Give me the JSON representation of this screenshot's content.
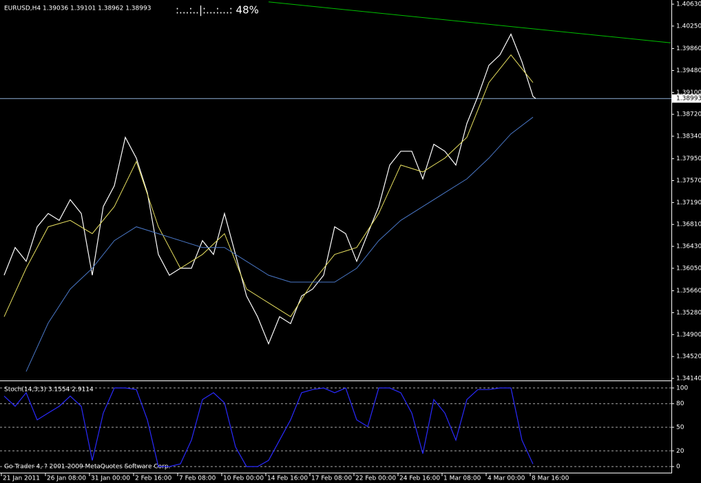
{
  "chart_data": [
    {
      "type": "line",
      "title": "EURUSD,H4  1.39036 1.39101 1.38962 1.38993",
      "annotation": ":...:..|:...:...:  48%",
      "xlim": [
        0,
        243
      ],
      "ylim": [
        1.34116,
        1.40702
      ],
      "yticks": [
        {
          "value": 1.4063,
          "label": "1.40630"
        },
        {
          "value": 1.4025,
          "label": "1.40250"
        },
        {
          "value": 1.3986,
          "label": "1.39860"
        },
        {
          "value": 1.3948,
          "label": "1.39480"
        },
        {
          "value": 1.391,
          "label": "1.39100"
        },
        {
          "value": 1.3872,
          "label": "1.38720"
        },
        {
          "value": 1.3834,
          "label": "1.38340"
        },
        {
          "value": 1.3795,
          "label": "1.37950"
        },
        {
          "value": 1.3757,
          "label": "1.37570"
        },
        {
          "value": 1.3719,
          "label": "1.37190"
        },
        {
          "value": 1.3681,
          "label": "1.36810"
        },
        {
          "value": 1.3643,
          "label": "1.36430"
        },
        {
          "value": 1.3605,
          "label": "1.36050"
        },
        {
          "value": 1.3566,
          "label": "1.35660"
        },
        {
          "value": 1.3528,
          "label": "1.35280"
        },
        {
          "value": 1.349,
          "label": "1.34900"
        },
        {
          "value": 1.3452,
          "label": "1.34520"
        },
        {
          "value": 1.3414,
          "label": "1.34140"
        }
      ],
      "hline": {
        "value": 1.38993,
        "label": "1.38993",
        "color": "#8fb0d8"
      },
      "series": [
        {
          "color": "#ffffff",
          "width": 1.2,
          "x": [
            1,
            5,
            9,
            13,
            17,
            21,
            25,
            29,
            33,
            37,
            41,
            45,
            49,
            53,
            57,
            61,
            65,
            69,
            73,
            77,
            81,
            85,
            89,
            93,
            97,
            101,
            105,
            109,
            113,
            117,
            121,
            125,
            129,
            133,
            137,
            141,
            145,
            149,
            153,
            157,
            161,
            165,
            169,
            173,
            177,
            181,
            185,
            189,
            193,
            194
          ],
          "values": [
            1.3593,
            1.3641,
            1.3617,
            1.3677,
            1.37,
            1.3688,
            1.3724,
            1.37,
            1.3593,
            1.3712,
            1.3748,
            1.3832,
            1.3796,
            1.3736,
            1.3629,
            1.3593,
            1.3605,
            1.3605,
            1.3653,
            1.3629,
            1.37,
            1.3629,
            1.3557,
            1.3521,
            1.3474,
            1.3521,
            1.3509,
            1.3557,
            1.3569,
            1.3593,
            1.3677,
            1.3665,
            1.3617,
            1.3665,
            1.3712,
            1.3784,
            1.3808,
            1.3808,
            1.376,
            1.382,
            1.3808,
            1.3784,
            1.3856,
            1.3903,
            1.3957,
            1.3975,
            1.4011,
            1.3963,
            1.3903,
            1.38993
          ]
        },
        {
          "color": "#e8e060",
          "width": 1,
          "x": [
            1,
            9,
            17,
            25,
            33,
            41,
            49,
            57,
            65,
            73,
            81,
            89,
            97,
            105,
            113,
            121,
            129,
            137,
            145,
            153,
            161,
            169,
            177,
            185,
            193
          ],
          "values": [
            1.3521,
            1.3605,
            1.3677,
            1.3688,
            1.3665,
            1.3712,
            1.379,
            1.3677,
            1.3605,
            1.3629,
            1.3665,
            1.3569,
            1.3545,
            1.3521,
            1.3581,
            1.3629,
            1.3641,
            1.37,
            1.3784,
            1.3772,
            1.3796,
            1.3832,
            1.3927,
            1.3975,
            1.3927
          ]
        },
        {
          "color": "#4a78c8",
          "width": 1,
          "x": [
            1,
            9,
            17,
            25,
            33,
            41,
            49,
            57,
            65,
            73,
            81,
            89,
            97,
            105,
            113,
            121,
            129,
            137,
            145,
            153,
            161,
            169,
            177,
            185,
            193
          ],
          "values": [
            null,
            1.3426,
            1.351,
            1.3569,
            1.3605,
            1.3653,
            1.3677,
            1.3665,
            1.3653,
            1.3641,
            1.3641,
            1.3617,
            1.3593,
            1.3581,
            1.3581,
            1.3581,
            1.3605,
            1.3653,
            1.3688,
            1.3712,
            1.3736,
            1.376,
            1.3796,
            1.3838,
            1.3867
          ]
        },
        {
          "color": "#00c000",
          "width": 1,
          "x": [
            97,
            243
          ],
          "values": [
            1.4067,
            1.3996
          ]
        }
      ]
    },
    {
      "type": "line",
      "title": "Stoch(14,3,3) 3.1554 2.9114",
      "note": "Go Trader 4, ? 2001-2009 MetaQuotes Software Corp.",
      "xlim": [
        0,
        243
      ],
      "ylim": [
        -7.8,
        107.8
      ],
      "yticks": [
        0,
        20,
        50,
        80,
        100
      ],
      "grid": true,
      "xticks": [
        {
          "value": 0,
          "label": "21 Jan 2011"
        },
        {
          "value": 16,
          "label": "26 Jan 08:00"
        },
        {
          "value": 32,
          "label": "31 Jan 00:00"
        },
        {
          "value": 48,
          "label": "2 Feb 16:00"
        },
        {
          "value": 64,
          "label": "7 Feb 08:00"
        },
        {
          "value": 80,
          "label": "10 Feb 00:00"
        },
        {
          "value": 96,
          "label": "14 Feb 16:00"
        },
        {
          "value": 112,
          "label": "17 Feb 08:00"
        },
        {
          "value": 128,
          "label": "22 Feb 00:00"
        },
        {
          "value": 144,
          "label": "24 Feb 16:00"
        },
        {
          "value": 160,
          "label": "1 Mar 08:00"
        },
        {
          "value": 176,
          "label": "4 Mar 00:00"
        },
        {
          "value": 192,
          "label": "8 Mar 16:00"
        }
      ],
      "series": [
        {
          "color": "#2a2aff",
          "width": 1.2,
          "x": [
            1,
            5,
            9,
            13,
            17,
            21,
            25,
            29,
            33,
            37,
            41,
            45,
            49,
            53,
            57,
            61,
            65,
            69,
            73,
            77,
            81,
            85,
            89,
            93,
            97,
            101,
            105,
            109,
            113,
            117,
            121,
            125,
            129,
            133,
            137,
            141,
            145,
            149,
            153,
            157,
            161,
            165,
            169,
            173,
            177,
            181,
            185,
            189,
            193
          ],
          "values": [
            89.7,
            76.7,
            94,
            59.5,
            68.1,
            76.7,
            89.7,
            76.7,
            7.8,
            68.1,
            100,
            100,
            98,
            59.5,
            0,
            0,
            3.4,
            33.6,
            85.3,
            94,
            81,
            25,
            0,
            0,
            7.8,
            33.6,
            59.5,
            94,
            98,
            100,
            94,
            100,
            59.5,
            50.9,
            100,
            100,
            94,
            68.1,
            16.4,
            85.3,
            68.1,
            33.6,
            85.3,
            98,
            98,
            100,
            100,
            33.6,
            3.2
          ]
        }
      ]
    }
  ]
}
